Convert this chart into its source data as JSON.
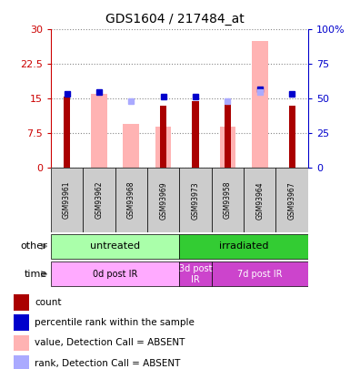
{
  "title": "GDS1604 / 217484_at",
  "samples": [
    "GSM93961",
    "GSM93962",
    "GSM93968",
    "GSM93969",
    "GSM93973",
    "GSM93958",
    "GSM93964",
    "GSM93967"
  ],
  "count_values": [
    15.5,
    0,
    0,
    13.5,
    14.5,
    14.5,
    0,
    13.5
  ],
  "count_color": "#aa0000",
  "pink_bar_values": [
    0,
    16.0,
    9.5,
    9.0,
    0,
    9.0,
    27.5,
    0
  ],
  "pink_bar_color": "#ffb3b3",
  "blue_square_values": [
    16.0,
    16.5,
    0,
    15.5,
    15.5,
    0,
    17.0,
    16.0
  ],
  "blue_square_color": "#0000cc",
  "lavender_square_values": [
    0,
    0,
    14.5,
    0,
    0,
    14.5,
    16.5,
    0
  ],
  "lavender_square_color": "#aaaaff",
  "ylim_left": [
    0,
    30
  ],
  "ylim_right": [
    0,
    100
  ],
  "yticks_left": [
    0,
    7.5,
    15,
    22.5,
    30
  ],
  "ytick_labels_left": [
    "0",
    "7.5",
    "15",
    "22.5",
    "30"
  ],
  "yticks_right": [
    0,
    25,
    50,
    75,
    100
  ],
  "ytick_labels_right": [
    "0",
    "25",
    "50",
    "75",
    "100%"
  ],
  "left_axis_color": "#cc0000",
  "right_axis_color": "#0000cc",
  "grid_color": "#888888",
  "sample_label_bg": "#cccccc",
  "other_row": [
    {
      "label": "untreated",
      "start": 0,
      "end": 4,
      "color": "#aaffaa"
    },
    {
      "label": "irradiated",
      "start": 4,
      "end": 8,
      "color": "#33cc33"
    }
  ],
  "time_row": [
    {
      "label": "0d post IR",
      "start": 0,
      "end": 4,
      "color": "#ffaaff"
    },
    {
      "label": "3d post\nIR",
      "start": 4,
      "end": 5,
      "color": "#cc44cc"
    },
    {
      "label": "7d post IR",
      "start": 5,
      "end": 8,
      "color": "#cc44cc"
    }
  ],
  "legend_items": [
    {
      "label": "count",
      "color": "#aa0000"
    },
    {
      "label": "percentile rank within the sample",
      "color": "#0000cc"
    },
    {
      "label": "value, Detection Call = ABSENT",
      "color": "#ffb3b3"
    },
    {
      "label": "rank, Detection Call = ABSENT",
      "color": "#aaaaff"
    }
  ]
}
